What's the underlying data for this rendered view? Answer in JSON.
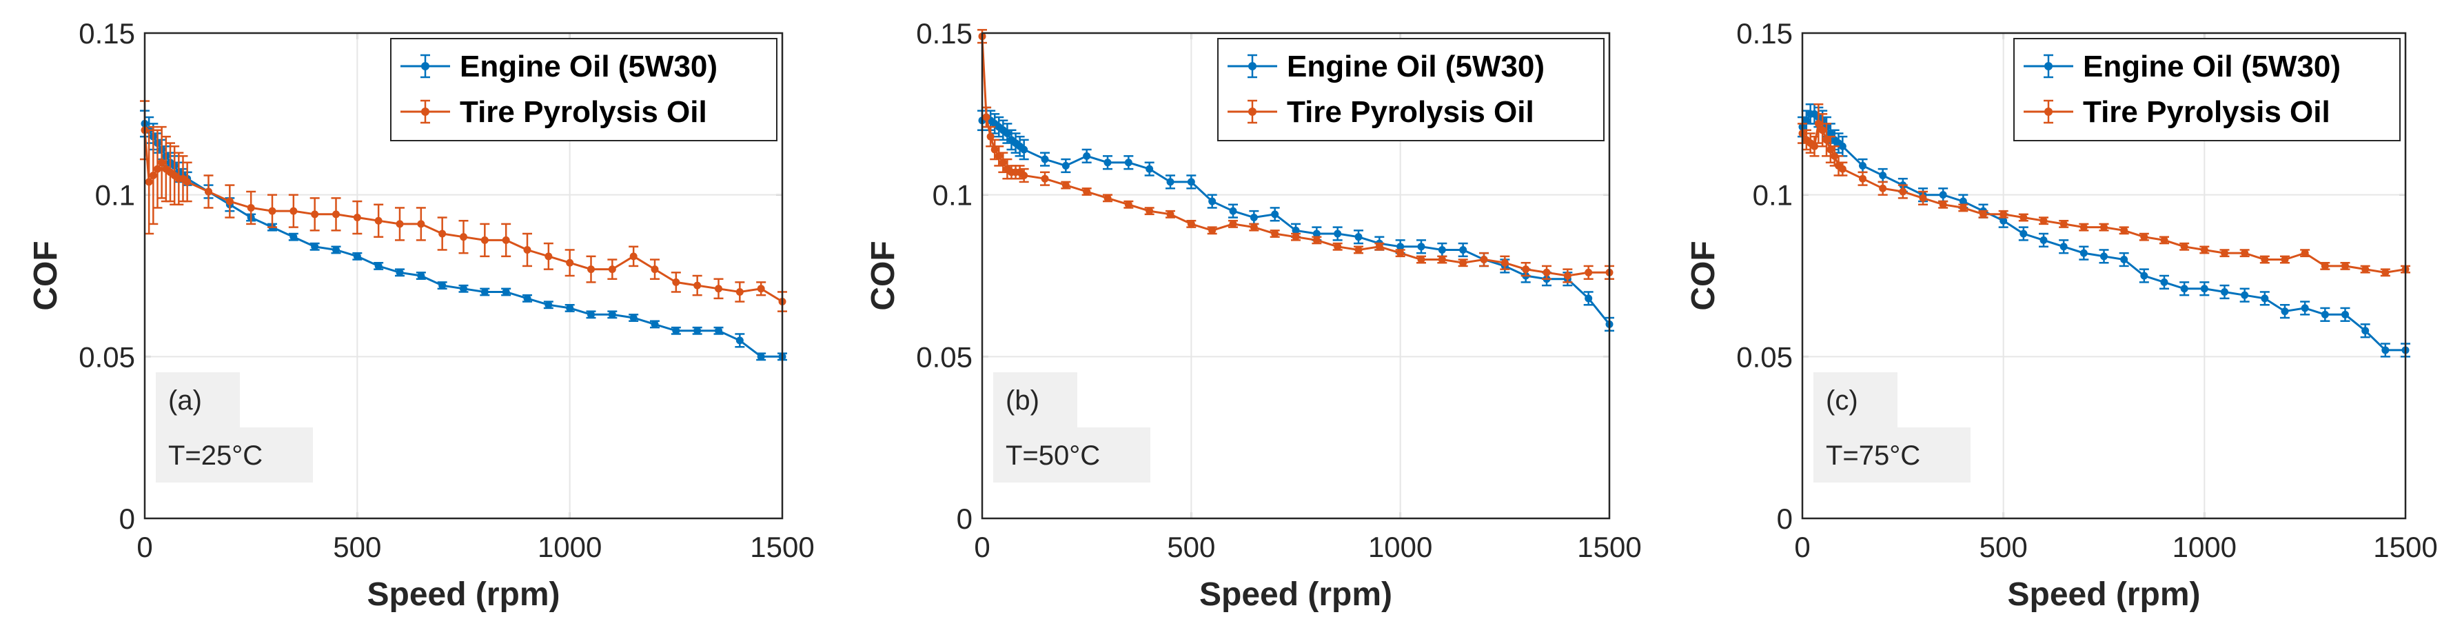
{
  "chart_data": [
    {
      "type": "line",
      "panel_label": "(a)",
      "condition": "T=25°C",
      "xlabel": "Speed (rpm)",
      "ylabel": "COF",
      "xlim": [
        0,
        1500
      ],
      "ylim": [
        0,
        0.15
      ],
      "xticks": [
        "0",
        "500",
        "1000",
        "1500"
      ],
      "yticks": [
        "0",
        "0.05",
        "0.1",
        "0.15"
      ],
      "grid": true,
      "legend_position": "top-right",
      "colors": {
        "Engine Oil (5W30)": "#0072BD",
        "Tire Pyrolysis Oil": "#D95319"
      },
      "series": [
        {
          "name": "Engine Oil (5W30)",
          "color": "#0072BD",
          "x": [
            0,
            10,
            20,
            30,
            40,
            50,
            60,
            70,
            80,
            90,
            100,
            150,
            200,
            250,
            300,
            350,
            400,
            450,
            500,
            550,
            600,
            650,
            700,
            750,
            800,
            850,
            900,
            950,
            1000,
            1050,
            1100,
            1150,
            1200,
            1250,
            1300,
            1350,
            1400,
            1450,
            1500
          ],
          "y": [
            0.122,
            0.12,
            0.118,
            0.116,
            0.114,
            0.112,
            0.11,
            0.109,
            0.107,
            0.106,
            0.105,
            0.101,
            0.097,
            0.093,
            0.09,
            0.087,
            0.084,
            0.083,
            0.081,
            0.078,
            0.076,
            0.075,
            0.072,
            0.071,
            0.07,
            0.07,
            0.068,
            0.066,
            0.065,
            0.063,
            0.063,
            0.062,
            0.06,
            0.058,
            0.058,
            0.058,
            0.055,
            0.05,
            0.05
          ],
          "err": [
            0.004,
            0.004,
            0.004,
            0.003,
            0.003,
            0.003,
            0.003,
            0.003,
            0.003,
            0.002,
            0.002,
            0.002,
            0.002,
            0.001,
            0.001,
            0.001,
            0.001,
            0.001,
            0.001,
            0.001,
            0.001,
            0.001,
            0.001,
            0.001,
            0.001,
            0.001,
            0.001,
            0.001,
            0.001,
            0.001,
            0.001,
            0.001,
            0.001,
            0.001,
            0.001,
            0.001,
            0.002,
            0.001,
            0.001
          ]
        },
        {
          "name": "Tire Pyrolysis Oil",
          "color": "#D95319",
          "x": [
            0,
            10,
            20,
            30,
            40,
            50,
            60,
            70,
            80,
            90,
            100,
            150,
            200,
            250,
            300,
            350,
            400,
            450,
            500,
            550,
            600,
            650,
            700,
            750,
            800,
            850,
            900,
            950,
            1000,
            1050,
            1100,
            1150,
            1200,
            1250,
            1300,
            1350,
            1400,
            1450,
            1500
          ],
          "y": [
            0.12,
            0.104,
            0.106,
            0.108,
            0.11,
            0.108,
            0.107,
            0.106,
            0.105,
            0.105,
            0.104,
            0.101,
            0.098,
            0.096,
            0.095,
            0.095,
            0.094,
            0.094,
            0.093,
            0.092,
            0.091,
            0.091,
            0.088,
            0.087,
            0.086,
            0.086,
            0.083,
            0.081,
            0.079,
            0.077,
            0.077,
            0.081,
            0.077,
            0.073,
            0.072,
            0.071,
            0.07,
            0.071,
            0.067
          ],
          "err": [
            0.009,
            0.016,
            0.015,
            0.012,
            0.011,
            0.01,
            0.009,
            0.009,
            0.008,
            0.007,
            0.006,
            0.005,
            0.005,
            0.005,
            0.005,
            0.005,
            0.005,
            0.005,
            0.005,
            0.005,
            0.005,
            0.005,
            0.005,
            0.005,
            0.005,
            0.005,
            0.005,
            0.004,
            0.004,
            0.004,
            0.003,
            0.003,
            0.003,
            0.003,
            0.003,
            0.003,
            0.003,
            0.002,
            0.003
          ]
        }
      ]
    },
    {
      "type": "line",
      "panel_label": "(b)",
      "condition": "T=50°C",
      "xlabel": "Speed (rpm)",
      "ylabel": "COF",
      "xlim": [
        0,
        1500
      ],
      "ylim": [
        0,
        0.15
      ],
      "xticks": [
        "0",
        "500",
        "1000",
        "1500"
      ],
      "yticks": [
        "0",
        "0.05",
        "0.1",
        "0.15"
      ],
      "grid": true,
      "legend_position": "top-right",
      "colors": {
        "Engine Oil (5W30)": "#0072BD",
        "Tire Pyrolysis Oil": "#D95319"
      },
      "series": [
        {
          "name": "Engine Oil (5W30)",
          "color": "#0072BD",
          "x": [
            0,
            10,
            20,
            30,
            40,
            50,
            60,
            70,
            80,
            90,
            100,
            150,
            200,
            250,
            300,
            350,
            400,
            450,
            500,
            550,
            600,
            650,
            700,
            750,
            800,
            850,
            900,
            950,
            1000,
            1050,
            1100,
            1150,
            1200,
            1250,
            1300,
            1350,
            1400,
            1450,
            1500
          ],
          "y": [
            0.123,
            0.124,
            0.123,
            0.122,
            0.121,
            0.12,
            0.119,
            0.117,
            0.116,
            0.115,
            0.114,
            0.111,
            0.109,
            0.112,
            0.11,
            0.11,
            0.108,
            0.104,
            0.104,
            0.098,
            0.095,
            0.093,
            0.094,
            0.089,
            0.088,
            0.088,
            0.087,
            0.085,
            0.084,
            0.084,
            0.083,
            0.083,
            0.08,
            0.078,
            0.075,
            0.074,
            0.074,
            0.068,
            0.06
          ],
          "err": [
            0.003,
            0.003,
            0.003,
            0.003,
            0.003,
            0.003,
            0.003,
            0.003,
            0.003,
            0.003,
            0.003,
            0.002,
            0.002,
            0.002,
            0.002,
            0.002,
            0.002,
            0.002,
            0.002,
            0.002,
            0.002,
            0.002,
            0.002,
            0.002,
            0.002,
            0.002,
            0.002,
            0.002,
            0.002,
            0.002,
            0.002,
            0.002,
            0.002,
            0.002,
            0.002,
            0.002,
            0.002,
            0.002,
            0.002
          ]
        },
        {
          "name": "Tire Pyrolysis Oil",
          "color": "#D95319",
          "x": [
            0,
            10,
            20,
            30,
            40,
            50,
            60,
            70,
            80,
            90,
            100,
            150,
            200,
            250,
            300,
            350,
            400,
            450,
            500,
            550,
            600,
            650,
            700,
            750,
            800,
            850,
            900,
            950,
            1000,
            1050,
            1100,
            1150,
            1200,
            1250,
            1300,
            1350,
            1400,
            1450,
            1500
          ],
          "y": [
            0.149,
            0.124,
            0.118,
            0.114,
            0.112,
            0.11,
            0.108,
            0.107,
            0.107,
            0.107,
            0.106,
            0.105,
            0.103,
            0.101,
            0.099,
            0.097,
            0.095,
            0.094,
            0.091,
            0.089,
            0.091,
            0.09,
            0.088,
            0.087,
            0.086,
            0.084,
            0.083,
            0.084,
            0.082,
            0.08,
            0.08,
            0.079,
            0.08,
            0.079,
            0.077,
            0.076,
            0.075,
            0.076,
            0.076
          ],
          "err": [
            0.002,
            0.003,
            0.003,
            0.003,
            0.003,
            0.003,
            0.003,
            0.002,
            0.002,
            0.002,
            0.002,
            0.002,
            0.001,
            0.001,
            0.001,
            0.001,
            0.001,
            0.001,
            0.001,
            0.001,
            0.001,
            0.001,
            0.001,
            0.001,
            0.001,
            0.001,
            0.001,
            0.001,
            0.001,
            0.001,
            0.001,
            0.001,
            0.002,
            0.002,
            0.002,
            0.002,
            0.002,
            0.002,
            0.002
          ]
        }
      ]
    },
    {
      "type": "line",
      "panel_label": "(c)",
      "condition": "T=75°C",
      "xlabel": "Speed (rpm)",
      "ylabel": "COF",
      "xlim": [
        0,
        1500
      ],
      "ylim": [
        0,
        0.15
      ],
      "xticks": [
        "0",
        "500",
        "1000",
        "1500"
      ],
      "yticks": [
        "0",
        "0.05",
        "0.1",
        "0.15"
      ],
      "grid": true,
      "legend_position": "top-right",
      "colors": {
        "Engine Oil (5W30)": "#0072BD",
        "Tire Pyrolysis Oil": "#D95319"
      },
      "series": [
        {
          "name": "Engine Oil (5W30)",
          "color": "#0072BD",
          "x": [
            0,
            10,
            20,
            30,
            40,
            50,
            60,
            70,
            80,
            90,
            100,
            150,
            200,
            250,
            300,
            350,
            400,
            450,
            500,
            550,
            600,
            650,
            700,
            750,
            800,
            850,
            900,
            950,
            1000,
            1050,
            1100,
            1150,
            1200,
            1250,
            1300,
            1350,
            1400,
            1450,
            1500
          ],
          "y": [
            0.121,
            0.123,
            0.125,
            0.125,
            0.124,
            0.123,
            0.121,
            0.119,
            0.117,
            0.116,
            0.115,
            0.109,
            0.106,
            0.103,
            0.1,
            0.1,
            0.098,
            0.095,
            0.092,
            0.088,
            0.086,
            0.084,
            0.082,
            0.081,
            0.08,
            0.075,
            0.073,
            0.071,
            0.071,
            0.07,
            0.069,
            0.068,
            0.064,
            0.065,
            0.063,
            0.063,
            0.058,
            0.052,
            0.052
          ],
          "err": [
            0.003,
            0.003,
            0.003,
            0.003,
            0.003,
            0.003,
            0.003,
            0.003,
            0.003,
            0.003,
            0.003,
            0.002,
            0.002,
            0.002,
            0.002,
            0.002,
            0.002,
            0.002,
            0.002,
            0.002,
            0.002,
            0.002,
            0.002,
            0.002,
            0.002,
            0.002,
            0.002,
            0.002,
            0.002,
            0.002,
            0.002,
            0.002,
            0.002,
            0.002,
            0.002,
            0.002,
            0.002,
            0.002,
            0.002
          ]
        },
        {
          "name": "Tire Pyrolysis Oil",
          "color": "#D95319",
          "x": [
            0,
            10,
            20,
            30,
            40,
            50,
            60,
            70,
            80,
            90,
            100,
            150,
            200,
            250,
            300,
            350,
            400,
            450,
            500,
            550,
            600,
            650,
            700,
            750,
            800,
            850,
            900,
            950,
            1000,
            1050,
            1100,
            1150,
            1200,
            1250,
            1300,
            1350,
            1400,
            1450,
            1500
          ],
          "y": [
            0.119,
            0.117,
            0.116,
            0.115,
            0.122,
            0.12,
            0.117,
            0.114,
            0.112,
            0.109,
            0.108,
            0.105,
            0.102,
            0.101,
            0.099,
            0.097,
            0.096,
            0.094,
            0.094,
            0.093,
            0.092,
            0.091,
            0.09,
            0.09,
            0.089,
            0.087,
            0.086,
            0.084,
            0.083,
            0.082,
            0.082,
            0.08,
            0.08,
            0.082,
            0.078,
            0.078,
            0.077,
            0.076,
            0.077
          ],
          "err": [
            0.003,
            0.003,
            0.003,
            0.003,
            0.006,
            0.005,
            0.005,
            0.004,
            0.003,
            0.003,
            0.002,
            0.002,
            0.002,
            0.002,
            0.002,
            0.001,
            0.001,
            0.001,
            0.001,
            0.001,
            0.001,
            0.001,
            0.001,
            0.001,
            0.001,
            0.001,
            0.001,
            0.001,
            0.001,
            0.001,
            0.001,
            0.001,
            0.001,
            0.001,
            0.001,
            0.001,
            0.001,
            0.001,
            0.001
          ]
        }
      ]
    }
  ]
}
